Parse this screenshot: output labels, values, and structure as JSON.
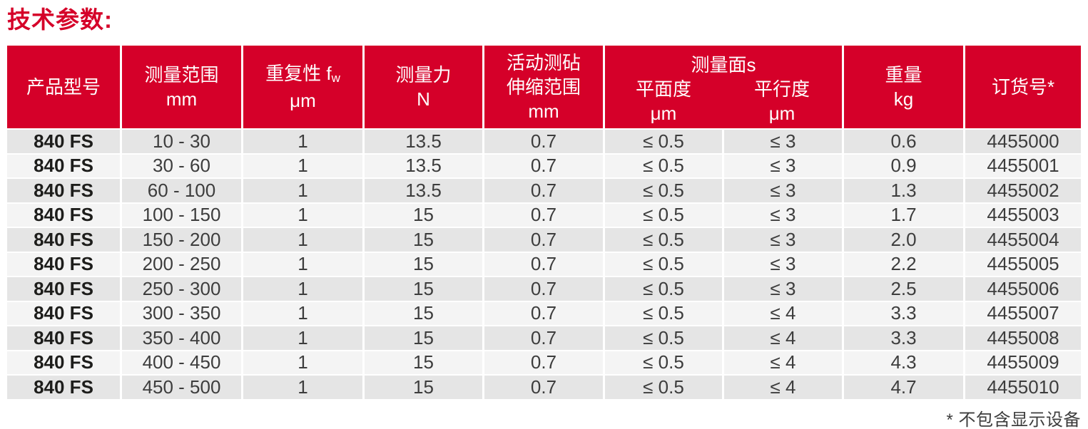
{
  "title": "技术参数:",
  "footnote": "* 不包含显示设备",
  "colors": {
    "header_red": "#d50029",
    "row_dark": "#e5e5e5",
    "row_light": "#f4f4f4",
    "text": "#3d3d3d"
  },
  "table": {
    "headers": {
      "product_model": "产品型号",
      "measuring_range_line1": "测量范围",
      "measuring_range_line2": "mm",
      "repeatability_line1": "重复性 f",
      "repeatability_sub": "w",
      "repeatability_line2": "μm",
      "measuring_force_line1": "测量力",
      "measuring_force_line2": "N",
      "anvil_line1": "活动测砧",
      "anvil_line2": "伸缩范围",
      "anvil_line3": "mm",
      "faces_group": "测量面s",
      "flatness_line1": "平面度",
      "flatness_line2": "μm",
      "parallelism_line1": "平行度",
      "parallelism_line2": "μm",
      "weight_line1": "重量",
      "weight_line2": "kg",
      "order_no": "订货号*"
    },
    "column_keys": [
      "model",
      "range",
      "repeatability",
      "force",
      "anvil",
      "flatness",
      "parallelism",
      "weight",
      "order"
    ],
    "rows": [
      {
        "model": "840 FS",
        "range": "10 - 30",
        "repeatability": "1",
        "force": "13.5",
        "anvil": "0.7",
        "flatness": "≤ 0.5",
        "parallelism": "≤ 3",
        "weight": "0.6",
        "order": "4455000"
      },
      {
        "model": "840 FS",
        "range": "30 - 60",
        "repeatability": "1",
        "force": "13.5",
        "anvil": "0.7",
        "flatness": "≤ 0.5",
        "parallelism": "≤ 3",
        "weight": "0.9",
        "order": "4455001"
      },
      {
        "model": "840 FS",
        "range": "60 - 100",
        "repeatability": "1",
        "force": "13.5",
        "anvil": "0.7",
        "flatness": "≤ 0.5",
        "parallelism": "≤ 3",
        "weight": "1.3",
        "order": "4455002"
      },
      {
        "model": "840 FS",
        "range": "100 - 150",
        "repeatability": "1",
        "force": "15",
        "anvil": "0.7",
        "flatness": "≤ 0.5",
        "parallelism": "≤ 3",
        "weight": "1.7",
        "order": "4455003"
      },
      {
        "model": "840 FS",
        "range": "150 - 200",
        "repeatability": "1",
        "force": "15",
        "anvil": "0.7",
        "flatness": "≤ 0.5",
        "parallelism": "≤ 3",
        "weight": "2.0",
        "order": "4455004"
      },
      {
        "model": "840 FS",
        "range": "200 - 250",
        "repeatability": "1",
        "force": "15",
        "anvil": "0.7",
        "flatness": "≤ 0.5",
        "parallelism": "≤ 3",
        "weight": "2.2",
        "order": "4455005"
      },
      {
        "model": "840 FS",
        "range": "250 - 300",
        "repeatability": "1",
        "force": "15",
        "anvil": "0.7",
        "flatness": "≤ 0.5",
        "parallelism": "≤ 3",
        "weight": "2.5",
        "order": "4455006"
      },
      {
        "model": "840 FS",
        "range": "300 - 350",
        "repeatability": "1",
        "force": "15",
        "anvil": "0.7",
        "flatness": "≤ 0.5",
        "parallelism": "≤ 4",
        "weight": "3.3",
        "order": "4455007"
      },
      {
        "model": "840 FS",
        "range": "350 - 400",
        "repeatability": "1",
        "force": "15",
        "anvil": "0.7",
        "flatness": "≤ 0.5",
        "parallelism": "≤ 4",
        "weight": "3.3",
        "order": "4455008"
      },
      {
        "model": "840 FS",
        "range": "400 - 450",
        "repeatability": "1",
        "force": "15",
        "anvil": "0.7",
        "flatness": "≤ 0.5",
        "parallelism": "≤ 4",
        "weight": "4.3",
        "order": "4455009"
      },
      {
        "model": "840 FS",
        "range": "450 - 500",
        "repeatability": "1",
        "force": "15",
        "anvil": "0.7",
        "flatness": "≤ 0.5",
        "parallelism": "≤ 4",
        "weight": "4.7",
        "order": "4455010"
      }
    ]
  }
}
